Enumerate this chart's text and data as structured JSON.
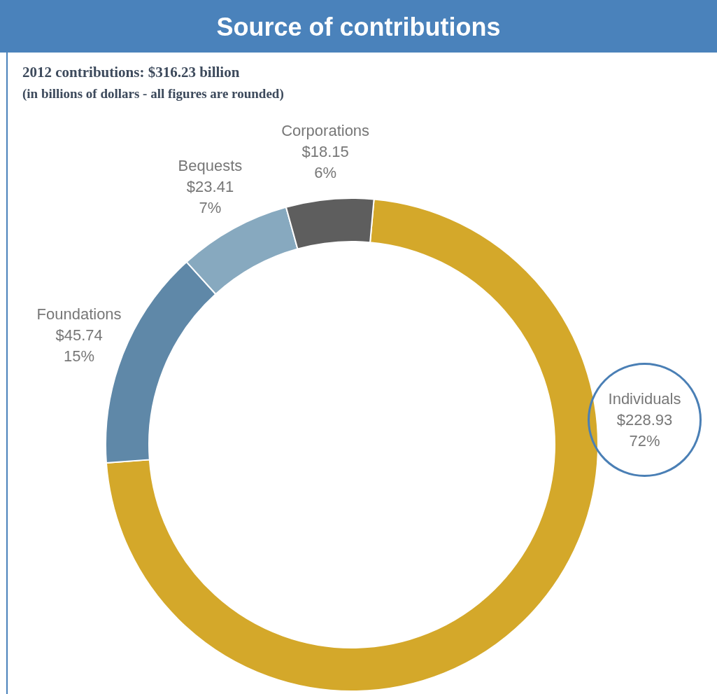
{
  "chart_data": {
    "type": "donut",
    "title": "Source of contributions",
    "subtitle": "2012 contributions:  $316.23 billion",
    "annotations": [
      "(in billions of dollars - all figures are rounded)"
    ],
    "categories": [
      "Individuals",
      "Foundations",
      "Bequests",
      "Corporations"
    ],
    "values": [
      228.93,
      45.74,
      23.41,
      18.15
    ],
    "value_labels": [
      "$228.93\n72%",
      "$45.74\n15%",
      "$23.41\n7%",
      "$18.15\n6%"
    ],
    "colors": [
      "#d4a82a",
      "#5f88a8",
      "#87a9bf",
      "#5e5e5e"
    ]
  }
}
